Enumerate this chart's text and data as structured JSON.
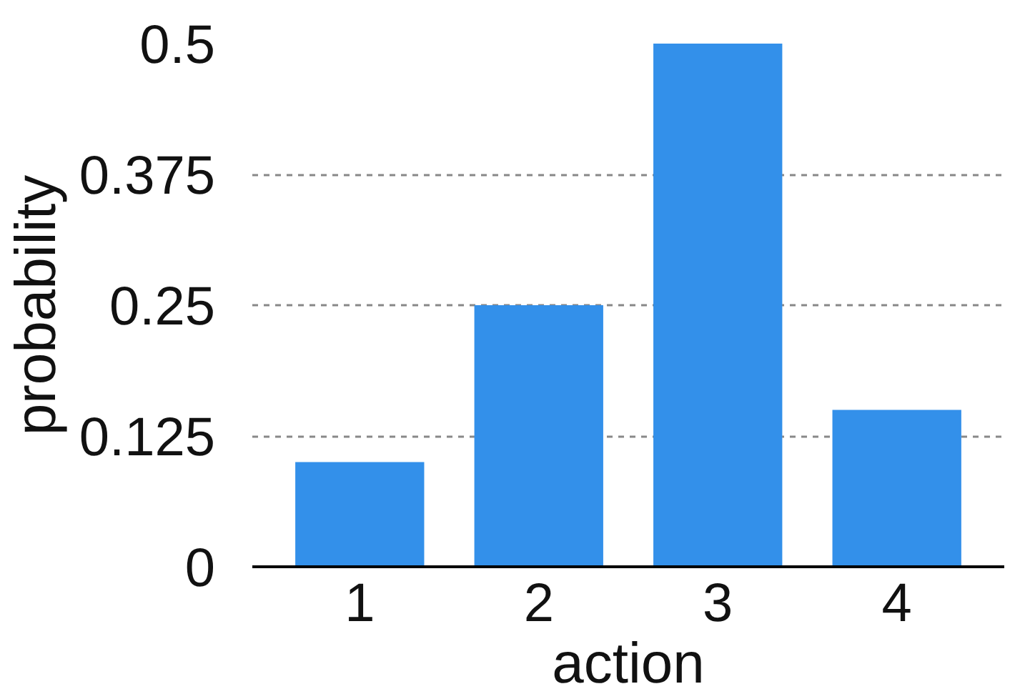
{
  "chart_data": {
    "type": "bar",
    "xlabel": "action",
    "ylabel": "probability",
    "categories": [
      "1",
      "2",
      "3",
      "4"
    ],
    "values": [
      0.1,
      0.25,
      0.5,
      0.15
    ],
    "color": "#3390ea",
    "ylim": [
      0,
      0.5
    ],
    "yticks": [
      0,
      0.125,
      0.25,
      0.375,
      0.5
    ],
    "grid": "y",
    "line_style": "dashed"
  }
}
